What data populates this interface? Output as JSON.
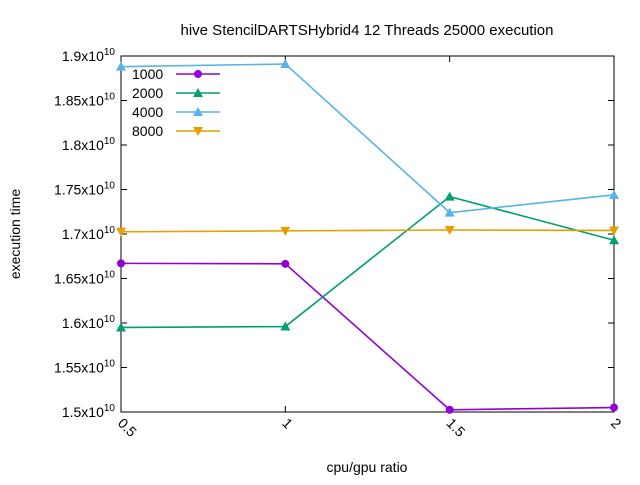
{
  "chart_data": {
    "type": "line",
    "title": "hive StencilDARTSHybrid4 12 Threads 25000 execution",
    "xlabel": "cpu/gpu ratio",
    "ylabel": "execution time",
    "x": [
      0.5,
      1,
      1.5,
      2
    ],
    "x_tick_labels": [
      "0.5",
      "1",
      "1.5",
      "2"
    ],
    "xlim": [
      0.5,
      2
    ],
    "ylim": [
      15000000000,
      19000000000
    ],
    "y_ticks": [
      {
        "value": 15000000000,
        "mantissa": "1.5x10",
        "exp": "10"
      },
      {
        "value": 15500000000,
        "mantissa": "1.55x10",
        "exp": "10"
      },
      {
        "value": 16000000000,
        "mantissa": "1.6x10",
        "exp": "10"
      },
      {
        "value": 16500000000,
        "mantissa": "1.65x10",
        "exp": "10"
      },
      {
        "value": 17000000000,
        "mantissa": "1.7x10",
        "exp": "10"
      },
      {
        "value": 17500000000,
        "mantissa": "1.75x10",
        "exp": "10"
      },
      {
        "value": 18000000000,
        "mantissa": "1.8x10",
        "exp": "10"
      },
      {
        "value": 18500000000,
        "mantissa": "1.85x10",
        "exp": "10"
      },
      {
        "value": 19000000000,
        "mantissa": "1.9x10",
        "exp": "10"
      }
    ],
    "legend_position": "top-left",
    "series": [
      {
        "name": "1000",
        "color": "#9400d3",
        "marker": "circle",
        "values": [
          16670000000,
          16665000000,
          15025000000,
          15050000000
        ]
      },
      {
        "name": "2000",
        "color": "#009e73",
        "marker": "triangle-up",
        "values": [
          15950000000,
          15960000000,
          17420000000,
          16930000000
        ]
      },
      {
        "name": "4000",
        "color": "#56b4e9",
        "marker": "triangle-up",
        "values": [
          18880000000,
          18910000000,
          17240000000,
          17440000000
        ]
      },
      {
        "name": "8000",
        "color": "#e69f00",
        "marker": "triangle-down",
        "values": [
          17025000000,
          17035000000,
          17045000000,
          17040000000
        ]
      }
    ]
  }
}
